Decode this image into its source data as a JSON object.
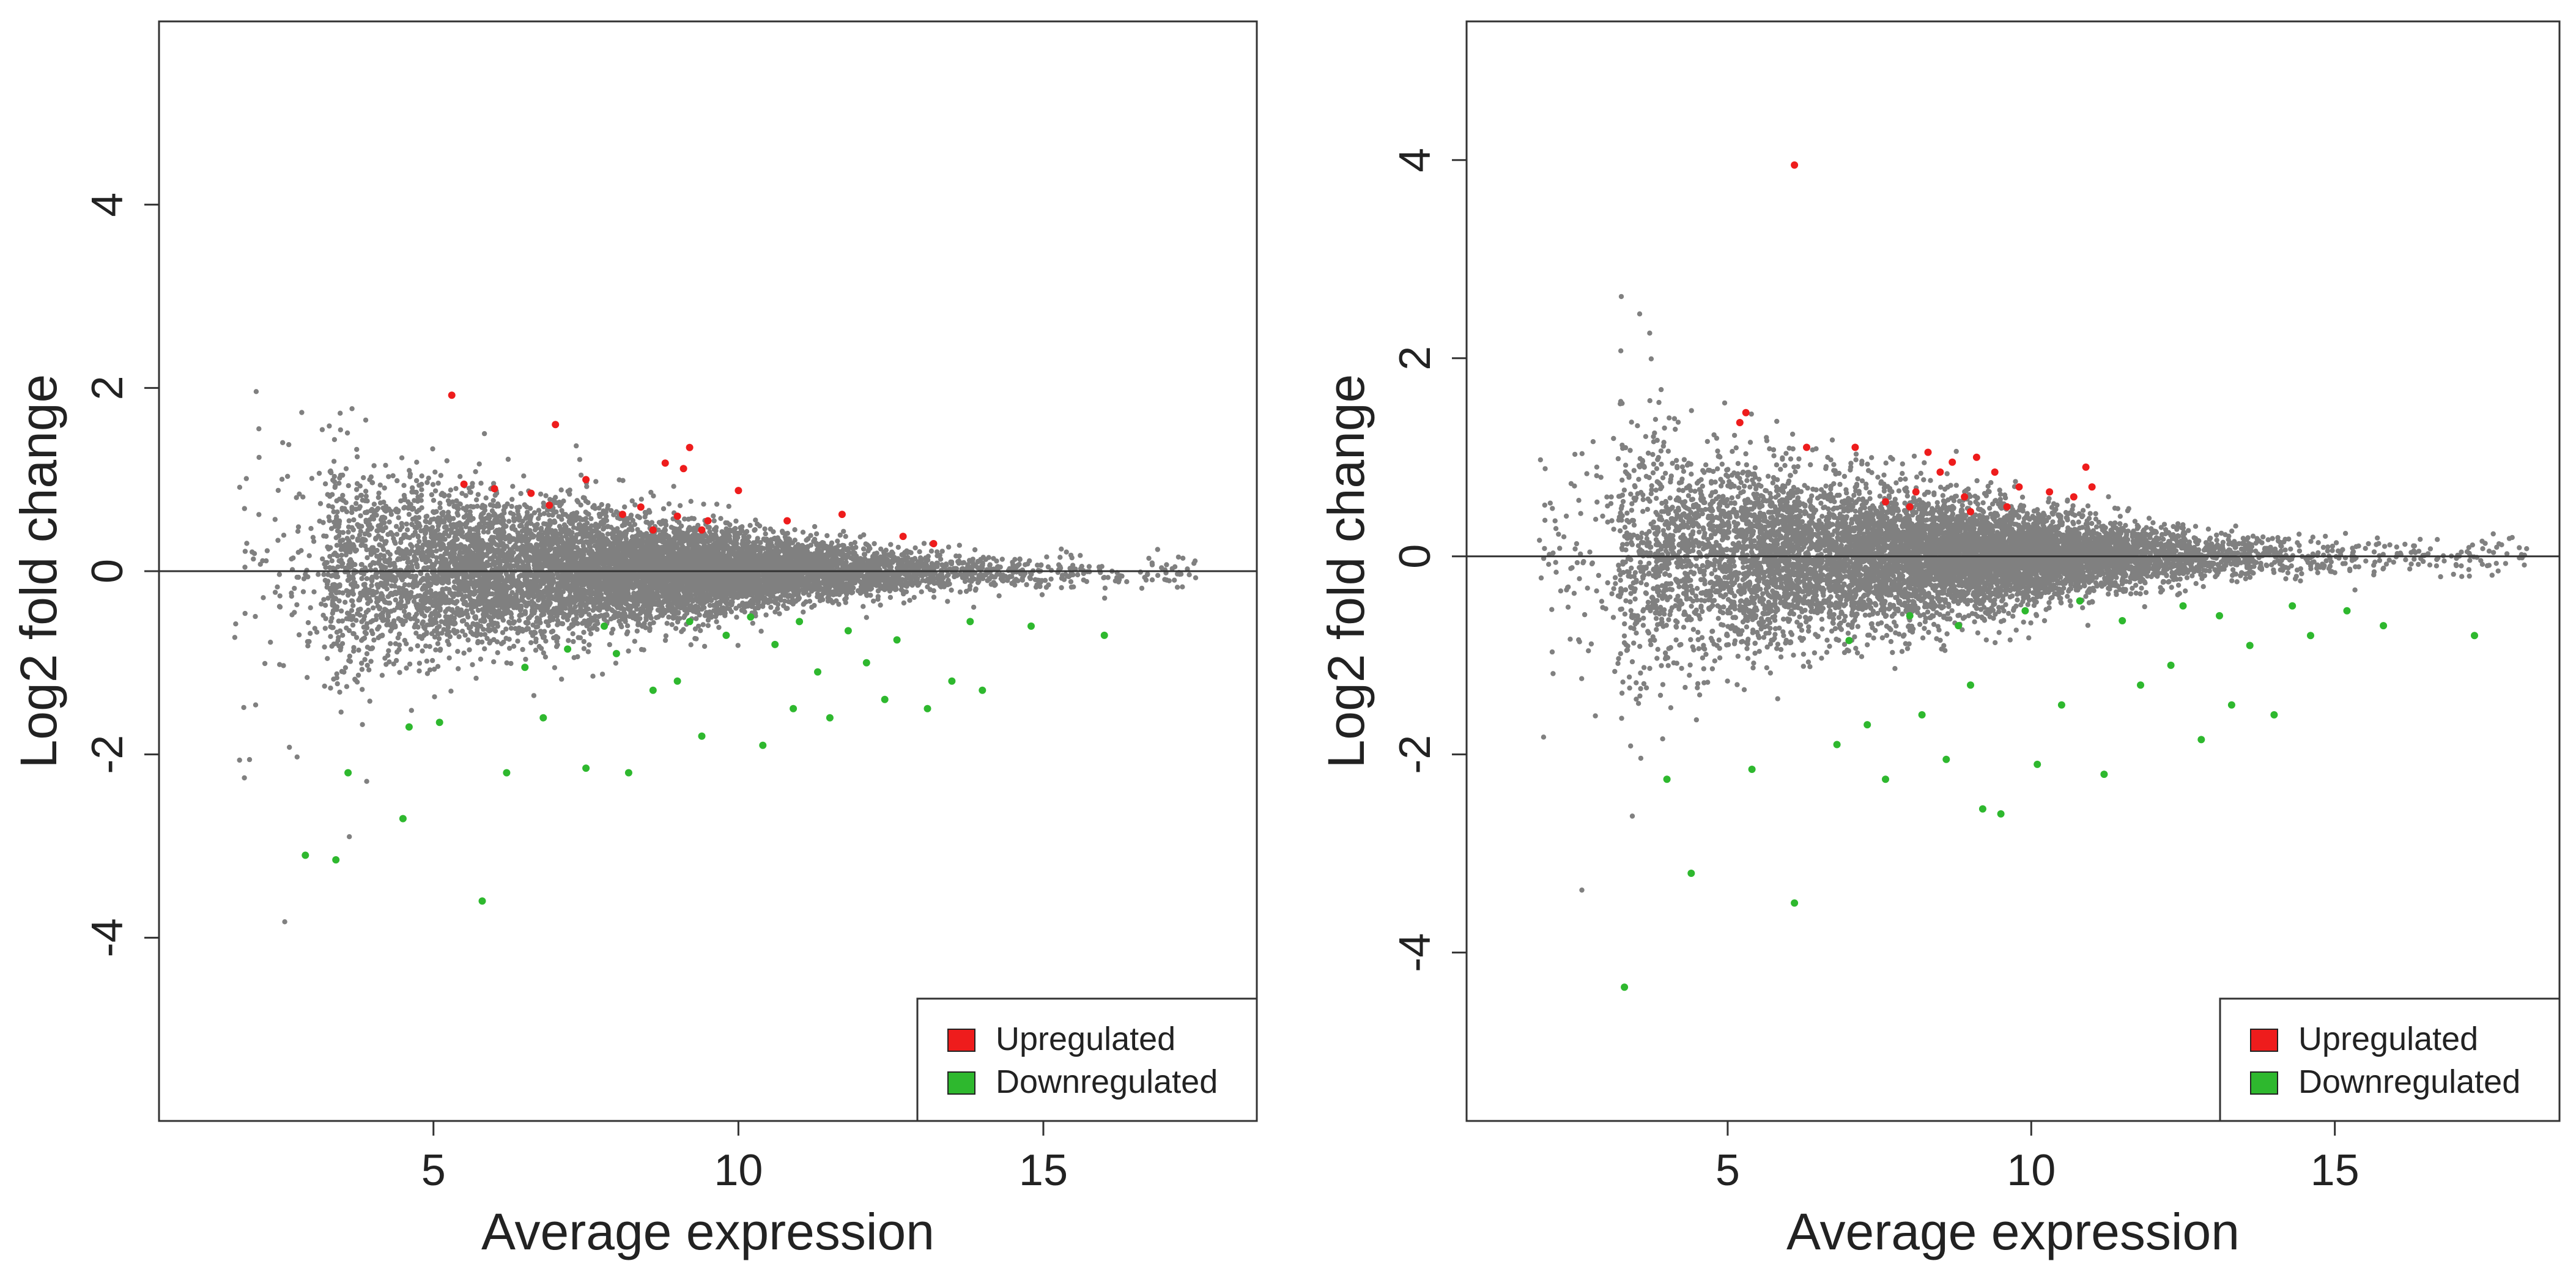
{
  "figure": {
    "panel_count": 2
  },
  "colors": {
    "background": "#d3d3d3",
    "upregulated": "#ee1c1c",
    "downregulated": "#2eb82e",
    "axis": "#333333"
  },
  "chart_data": [
    {
      "type": "scatter",
      "kind": "MA plot",
      "title": "",
      "xlabel": "Average expression",
      "ylabel": "Log2 fold change",
      "xlim": [
        0.5,
        18.5
      ],
      "ylim": [
        -6.0,
        6.0
      ],
      "xticks": [
        5,
        10,
        15
      ],
      "xtick_labels": [
        "5",
        "10",
        "15"
      ],
      "yticks": [
        -4,
        -2,
        0,
        2,
        4
      ],
      "ytick_labels": [
        "-4",
        "-2",
        "0",
        "2",
        "4"
      ],
      "hline": 0,
      "background_cloud": {
        "color": "#808080",
        "n_points": 9000,
        "x_range": [
          1.7,
          17.5
        ],
        "spread_at_low_expression": 0.55,
        "spread_at_high_expression": 0.1
      },
      "legend": {
        "position": "bottom-right",
        "entries": [
          "Upregulated",
          "Downregulated"
        ]
      },
      "series": [
        {
          "name": "Upregulated",
          "color": "#ee1c1c",
          "points": [
            [
              5.3,
              1.92
            ],
            [
              5.5,
              0.95
            ],
            [
              6.0,
              0.9
            ],
            [
              6.6,
              0.85
            ],
            [
              6.9,
              0.72
            ],
            [
              7.0,
              1.6
            ],
            [
              7.5,
              1.0
            ],
            [
              8.1,
              0.62
            ],
            [
              8.4,
              0.7
            ],
            [
              8.6,
              0.45
            ],
            [
              8.8,
              1.18
            ],
            [
              9.0,
              0.6
            ],
            [
              9.1,
              1.12
            ],
            [
              9.2,
              1.35
            ],
            [
              9.4,
              0.45
            ],
            [
              9.5,
              0.55
            ],
            [
              10.0,
              0.88
            ],
            [
              10.8,
              0.55
            ],
            [
              11.7,
              0.62
            ],
            [
              12.7,
              0.38
            ],
            [
              13.2,
              0.3
            ]
          ]
        },
        {
          "name": "Downregulated",
          "color": "#2eb82e",
          "points": [
            [
              2.9,
              -3.1
            ],
            [
              3.4,
              -3.15
            ],
            [
              3.6,
              -2.2
            ],
            [
              4.5,
              -2.7
            ],
            [
              4.6,
              -1.7
            ],
            [
              5.1,
              -1.65
            ],
            [
              5.8,
              -3.6
            ],
            [
              6.2,
              -2.2
            ],
            [
              6.8,
              -1.6
            ],
            [
              7.5,
              -2.15
            ],
            [
              8.2,
              -2.2
            ],
            [
              9.0,
              -1.2
            ],
            [
              9.4,
              -1.8
            ],
            [
              10.4,
              -1.9
            ],
            [
              10.9,
              -1.5
            ],
            [
              11.5,
              -1.6
            ],
            [
              12.1,
              -1.0
            ],
            [
              12.4,
              -1.4
            ],
            [
              13.1,
              -1.5
            ],
            [
              13.5,
              -1.2
            ],
            [
              14.0,
              -1.3
            ],
            [
              14.8,
              -0.6
            ],
            [
              16.0,
              -0.7
            ],
            [
              6.5,
              -1.05
            ],
            [
              7.2,
              -0.85
            ],
            [
              8.0,
              -0.9
            ],
            [
              8.6,
              -1.3
            ],
            [
              9.8,
              -0.7
            ],
            [
              10.2,
              -0.5
            ],
            [
              10.6,
              -0.8
            ],
            [
              11.0,
              -0.55
            ],
            [
              11.3,
              -1.1
            ],
            [
              11.8,
              -0.65
            ],
            [
              12.6,
              -0.75
            ],
            [
              13.8,
              -0.55
            ],
            [
              7.8,
              -0.6
            ],
            [
              9.2,
              -0.55
            ]
          ]
        }
      ]
    },
    {
      "type": "scatter",
      "kind": "MA plot",
      "title": "",
      "xlabel": "Average expression",
      "ylabel": "Log2 fold change",
      "xlim": [
        0.7,
        18.7
      ],
      "ylim": [
        -5.7,
        5.4
      ],
      "xticks": [
        5,
        10,
        15
      ],
      "xtick_labels": [
        "5",
        "10",
        "15"
      ],
      "yticks": [
        -4,
        -2,
        0,
        2,
        4
      ],
      "ytick_labels": [
        "-4",
        "-2",
        "0",
        "2",
        "4"
      ],
      "hline": 0,
      "background_cloud": {
        "color": "#808080",
        "n_points": 9000,
        "x_range": [
          1.9,
          18.2
        ],
        "spread_at_low_expression": 0.6,
        "spread_at_high_expression": 0.1
      },
      "legend": {
        "position": "bottom-right",
        "entries": [
          "Upregulated",
          "Downregulated"
        ]
      },
      "series": [
        {
          "name": "Upregulated",
          "color": "#ee1c1c",
          "points": [
            [
              6.1,
              3.95
            ],
            [
              5.2,
              1.35
            ],
            [
              5.3,
              1.45
            ],
            [
              6.3,
              1.1
            ],
            [
              7.1,
              1.1
            ],
            [
              7.6,
              0.55
            ],
            [
              8.1,
              0.65
            ],
            [
              8.3,
              1.05
            ],
            [
              8.5,
              0.85
            ],
            [
              8.7,
              0.95
            ],
            [
              8.9,
              0.6
            ],
            [
              9.1,
              1.0
            ],
            [
              9.4,
              0.85
            ],
            [
              9.6,
              0.5
            ],
            [
              9.8,
              0.7
            ],
            [
              10.3,
              0.65
            ],
            [
              10.7,
              0.6
            ],
            [
              10.9,
              0.9
            ],
            [
              11.0,
              0.7
            ],
            [
              8.0,
              0.5
            ],
            [
              9.0,
              0.45
            ]
          ]
        },
        {
          "name": "Downregulated",
          "color": "#2eb82e",
          "points": [
            [
              3.3,
              -4.35
            ],
            [
              4.4,
              -3.2
            ],
            [
              6.1,
              -3.5
            ],
            [
              9.2,
              -2.55
            ],
            [
              9.5,
              -2.6
            ],
            [
              4.0,
              -2.25
            ],
            [
              5.4,
              -2.15
            ],
            [
              7.6,
              -2.25
            ],
            [
              8.6,
              -2.05
            ],
            [
              10.1,
              -2.1
            ],
            [
              11.2,
              -2.2
            ],
            [
              12.8,
              -1.85
            ],
            [
              13.3,
              -1.5
            ],
            [
              14.0,
              -1.6
            ],
            [
              15.2,
              -0.55
            ],
            [
              15.8,
              -0.7
            ],
            [
              17.3,
              -0.8
            ],
            [
              6.8,
              -1.9
            ],
            [
              7.3,
              -1.7
            ],
            [
              8.2,
              -1.6
            ],
            [
              9.0,
              -1.3
            ],
            [
              10.5,
              -1.5
            ],
            [
              11.8,
              -1.3
            ],
            [
              12.3,
              -1.1
            ],
            [
              13.6,
              -0.9
            ],
            [
              14.6,
              -0.8
            ],
            [
              7.0,
              -0.85
            ],
            [
              8.8,
              -0.7
            ],
            [
              9.9,
              -0.55
            ],
            [
              10.8,
              -0.45
            ],
            [
              11.5,
              -0.65
            ],
            [
              12.5,
              -0.5
            ],
            [
              13.1,
              -0.6
            ],
            [
              14.3,
              -0.5
            ],
            [
              8.0,
              -0.6
            ]
          ]
        }
      ]
    }
  ]
}
